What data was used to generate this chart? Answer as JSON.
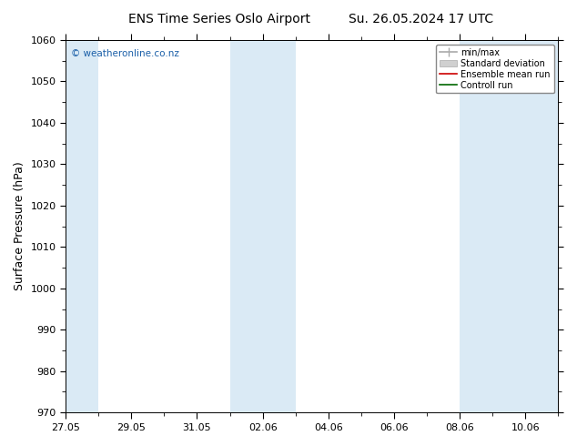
{
  "title_left": "ENS Time Series Oslo Airport",
  "title_right": "Su. 26.05.2024 17 UTC",
  "ylabel": "Surface Pressure (hPa)",
  "ylim": [
    970,
    1060
  ],
  "yticks": [
    970,
    980,
    990,
    1000,
    1010,
    1020,
    1030,
    1040,
    1050,
    1060
  ],
  "xlim_start": "2024-05-27",
  "xlim_end": "2024-06-11",
  "xtick_dates": [
    "2024-05-27",
    "2024-05-29",
    "2024-05-31",
    "2024-06-02",
    "2024-06-04",
    "2024-06-06",
    "2024-06-08",
    "2024-06-10"
  ],
  "xtick_labels": [
    "27.05",
    "29.05",
    "31.05",
    "02.06",
    "04.06",
    "06.06",
    "08.06",
    "10.06"
  ],
  "blue_bands": [
    [
      "2024-05-27",
      "2024-05-28"
    ],
    [
      "2024-06-01",
      "2024-06-03"
    ],
    [
      "2024-06-08",
      "2024-06-11"
    ]
  ],
  "blue_band_color": "#daeaf5",
  "watermark": "© weatheronline.co.nz",
  "legend_items": [
    "min/max",
    "Standard deviation",
    "Ensemble mean run",
    "Controll run"
  ],
  "background_color": "#ffffff",
  "plot_bg_color": "#ffffff",
  "title_fontsize": 10,
  "tick_fontsize": 8,
  "ylabel_fontsize": 9
}
